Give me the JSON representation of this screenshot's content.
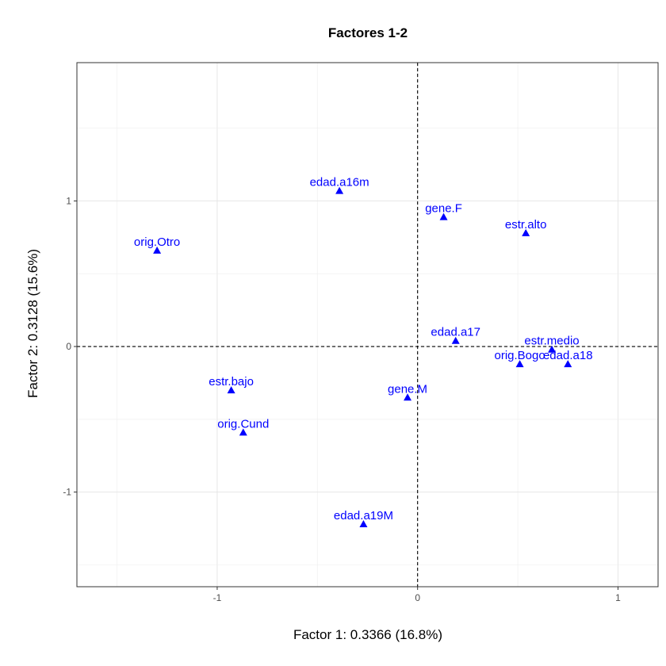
{
  "chart_data": {
    "type": "scatter",
    "title": "Factores 1-2",
    "xlabel": "Factor 1: 0.3366 (16.8%)",
    "ylabel": "Factor 2: 0.3128 (15.6%)",
    "xlim": [
      -1.7,
      1.2
    ],
    "ylim": [
      -1.65,
      1.95
    ],
    "x_ticks": [
      -1,
      0,
      1
    ],
    "y_ticks": [
      -1,
      0,
      1
    ],
    "x_tick_labels": [
      "-1",
      "0",
      "1"
    ],
    "y_tick_labels": [
      "-1",
      "0",
      "1"
    ],
    "grid": true,
    "reference_lines": {
      "x": 0,
      "y": 0,
      "style": "dashed"
    },
    "marker": "triangle",
    "color": "#0000ff",
    "points": [
      {
        "label": "edad.a16m",
        "x": -0.39,
        "y": 1.07
      },
      {
        "label": "gene.F",
        "x": 0.13,
        "y": 0.89
      },
      {
        "label": "estr.alto",
        "x": 0.54,
        "y": 0.78
      },
      {
        "label": "orig.Otro",
        "x": -1.3,
        "y": 0.66
      },
      {
        "label": "edad.a17",
        "x": 0.19,
        "y": 0.04
      },
      {
        "label": "estr.medio",
        "x": 0.67,
        "y": -0.02
      },
      {
        "label": "orig.Bogo",
        "x": 0.51,
        "y": -0.12
      },
      {
        "label": "edad.a18",
        "x": 0.75,
        "y": -0.12
      },
      {
        "label": "estr.bajo",
        "x": -0.93,
        "y": -0.3
      },
      {
        "label": "gene.M",
        "x": -0.05,
        "y": -0.35
      },
      {
        "label": "orig.Cund",
        "x": -0.87,
        "y": -0.59
      },
      {
        "label": "edad.a19M",
        "x": -0.27,
        "y": -1.22
      }
    ]
  }
}
